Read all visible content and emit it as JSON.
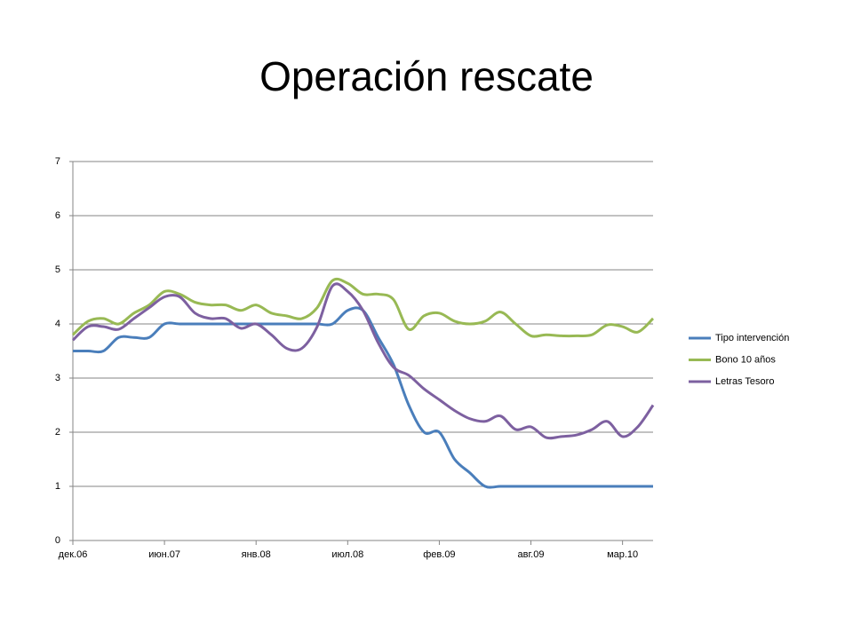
{
  "chart_data": {
    "type": "line",
    "title": "Operación rescate",
    "categories": [
      "дек.06",
      null,
      null,
      null,
      null,
      null,
      "июн.07",
      null,
      null,
      null,
      null,
      null,
      "янв.08",
      null,
      null,
      null,
      null,
      null,
      "июл.08",
      null,
      null,
      null,
      null,
      null,
      "фев.09",
      null,
      null,
      null,
      null,
      null,
      "авг.09",
      null,
      null,
      null,
      null,
      null,
      "мар.10",
      null,
      null
    ],
    "series": [
      {
        "name": "Tipo intervención",
        "color": "#4a7ebb",
        "values": [
          3.5,
          3.5,
          3.5,
          3.75,
          3.75,
          3.75,
          4.0,
          4.0,
          4.0,
          4.0,
          4.0,
          4.0,
          4.0,
          4.0,
          4.0,
          4.0,
          4.0,
          4.0,
          4.25,
          4.25,
          3.75,
          3.25,
          2.5,
          2.0,
          2.0,
          1.5,
          1.25,
          1.0,
          1.0,
          1.0,
          1.0,
          1.0,
          1.0,
          1.0,
          1.0,
          1.0,
          1.0,
          1.0,
          1.0
        ]
      },
      {
        "name": "Bono 10 años",
        "color": "#98b954",
        "values": [
          3.8,
          4.05,
          4.1,
          4.0,
          4.2,
          4.35,
          4.6,
          4.55,
          4.4,
          4.35,
          4.35,
          4.25,
          4.35,
          4.2,
          4.15,
          4.1,
          4.3,
          4.8,
          4.75,
          4.55,
          4.55,
          4.45,
          3.9,
          4.15,
          4.2,
          4.05,
          4.0,
          4.05,
          4.22,
          4.0,
          3.78,
          3.8,
          3.78,
          3.78,
          3.8,
          3.98,
          3.95,
          3.85,
          4.1
        ]
      },
      {
        "name": "Letras Tesoro",
        "color": "#7d60a0",
        "values": [
          3.7,
          3.95,
          3.95,
          3.9,
          4.1,
          4.3,
          4.5,
          4.5,
          4.2,
          4.1,
          4.1,
          3.92,
          4.0,
          3.8,
          3.55,
          3.55,
          3.95,
          4.7,
          4.6,
          4.25,
          3.65,
          3.2,
          3.05,
          2.8,
          2.6,
          2.4,
          2.25,
          2.2,
          2.3,
          2.05,
          2.1,
          1.9,
          1.92,
          1.95,
          2.05,
          2.2,
          1.92,
          2.1,
          2.5
        ]
      }
    ],
    "ylim": [
      0,
      7
    ],
    "yticks": [
      0,
      1,
      2,
      3,
      4,
      5,
      6,
      7
    ],
    "grid": true,
    "legend": "right"
  }
}
